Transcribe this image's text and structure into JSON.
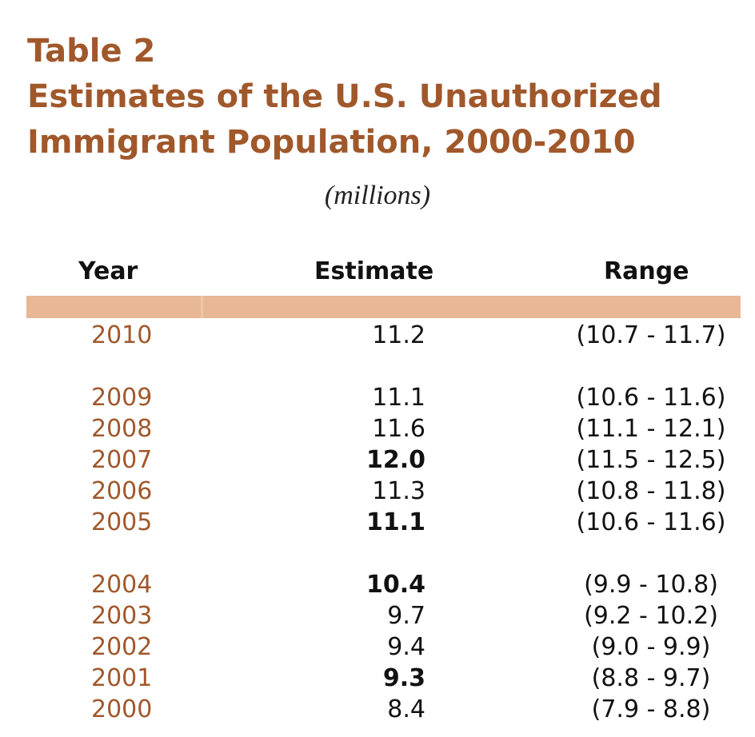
{
  "title": {
    "line1": "Table 2",
    "line2": "Estimates of the U.S. Unauthorized",
    "line3": "Immigrant Population, 2000-2010"
  },
  "unit_label": "(millions)",
  "columns": {
    "year": "Year",
    "estimate": "Estimate",
    "range": "Range"
  },
  "colors": {
    "accent": "#a0582b",
    "band": "#e8b795",
    "text": "#111111"
  },
  "rows": [
    {
      "year": "2010",
      "estimate": "11.2",
      "range": "(10.7 - 11.7)",
      "bold": false
    },
    {
      "year": "2009",
      "estimate": "11.1",
      "range": "(10.6 - 11.6)",
      "bold": false
    },
    {
      "year": "2008",
      "estimate": "11.6",
      "range": "(11.1 - 12.1)",
      "bold": false
    },
    {
      "year": "2007",
      "estimate": "12.0",
      "range": "(11.5 - 12.5)",
      "bold": true
    },
    {
      "year": "2006",
      "estimate": "11.3",
      "range": "(10.8 - 11.8)",
      "bold": false
    },
    {
      "year": "2005",
      "estimate": "11.1",
      "range": "(10.6 - 11.6)",
      "bold": true
    },
    {
      "year": "2004",
      "estimate": "10.4",
      "range": "(9.9 - 10.8)",
      "bold": true
    },
    {
      "year": "2003",
      "estimate": "9.7",
      "range": "(9.2 - 10.2)",
      "bold": false
    },
    {
      "year": "2002",
      "estimate": "9.4",
      "range": "(9.0 - 9.9)",
      "bold": false
    },
    {
      "year": "2001",
      "estimate": "9.3",
      "range": "(8.8 - 9.7)",
      "bold": true
    },
    {
      "year": "2000",
      "estimate": "8.4",
      "range": "(7.9 - 8.8)",
      "bold": false
    }
  ]
}
